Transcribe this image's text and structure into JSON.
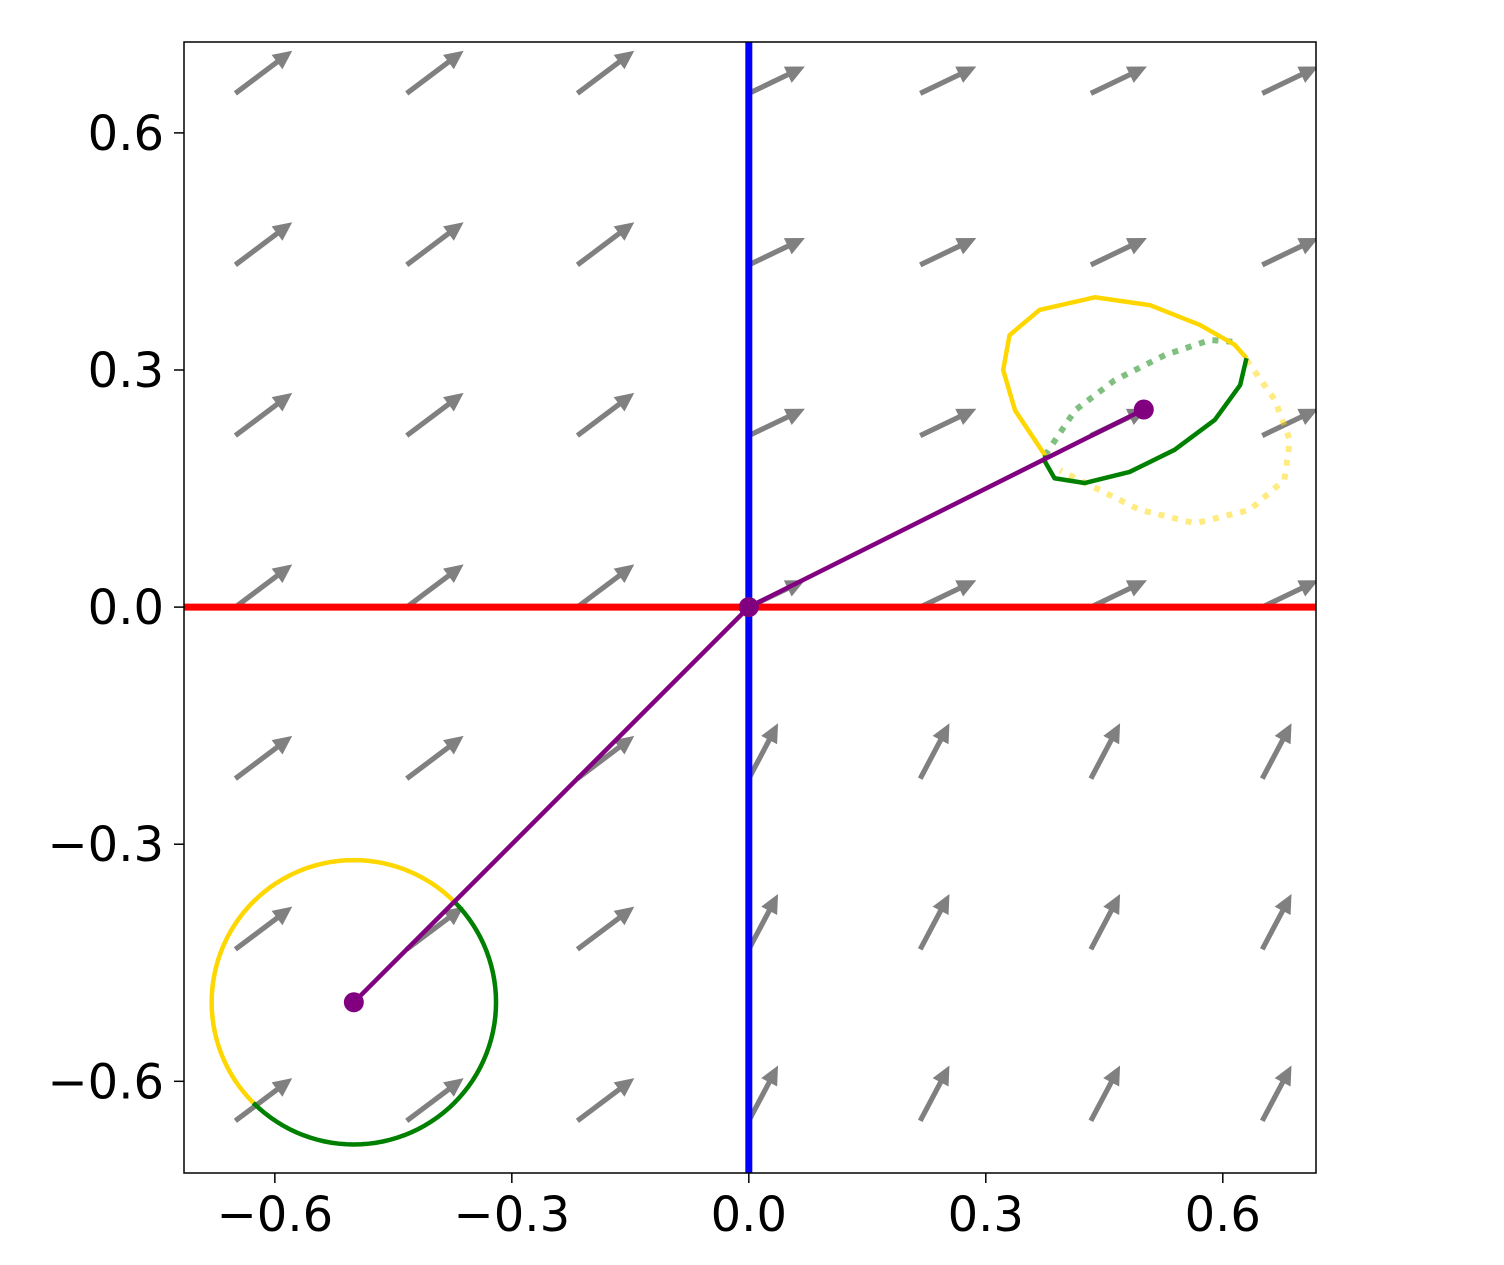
{
  "chart_data": {
    "type": "quiver",
    "xlim": [
      -0.715,
      0.718
    ],
    "ylim": [
      -0.716,
      0.715
    ],
    "xticks": [
      {
        "value": -0.6,
        "label": "−0.6"
      },
      {
        "value": -0.3,
        "label": "−0.3"
      },
      {
        "value": 0,
        "label": "0.0"
      },
      0.3,
      0.6
    ],
    "yticks": [
      {
        "value": -0.6,
        "label": "−0.6"
      },
      {
        "value": -0.3,
        "label": "−0.3"
      },
      {
        "value": 0,
        "label": "0.0"
      },
      0.3,
      0.6
    ],
    "quiver": {
      "color": "#808080",
      "x": [
        -0.65,
        -0.433,
        -0.217,
        0,
        0.217,
        0.433,
        0.65
      ],
      "y": [
        0.65,
        0.433,
        0.217,
        0,
        -0.217,
        -0.433,
        -0.65
      ],
      "u": [
        [
          0.072,
          0.072,
          0.072,
          0.071,
          0.071,
          0.071,
          0.071
        ],
        [
          0.072,
          0.072,
          0.072,
          0.071,
          0.071,
          0.071,
          0.071
        ],
        [
          0.072,
          0.072,
          0.072,
          0.071,
          0.071,
          0.071,
          0.071
        ],
        [
          0.072,
          0.072,
          0.072,
          0.071,
          0.071,
          0.071,
          0.071
        ],
        [
          0.072,
          0.072,
          0.072,
          0.037,
          0.037,
          0.037,
          0.037
        ],
        [
          0.072,
          0.072,
          0.072,
          0.037,
          0.037,
          0.037,
          0.037
        ],
        [
          0.072,
          0.072,
          0.072,
          0.037,
          0.037,
          0.037,
          0.037
        ]
      ],
      "v": [
        [
          0.054,
          0.054,
          0.054,
          0.034,
          0.034,
          0.034,
          0.034
        ],
        [
          0.054,
          0.054,
          0.054,
          0.034,
          0.034,
          0.034,
          0.034
        ],
        [
          0.054,
          0.054,
          0.054,
          0.034,
          0.034,
          0.034,
          0.034
        ],
        [
          0.054,
          0.054,
          0.054,
          0.034,
          0.034,
          0.034,
          0.034
        ],
        [
          0.054,
          0.054,
          0.054,
          0.07,
          0.07,
          0.07,
          0.07
        ],
        [
          0.054,
          0.054,
          0.054,
          0.07,
          0.07,
          0.07,
          0.07
        ],
        [
          0.054,
          0.054,
          0.054,
          0.07,
          0.07,
          0.07,
          0.07
        ]
      ]
    },
    "hlines": [
      {
        "y": 0,
        "color": "#ff0000"
      }
    ],
    "vlines": [
      {
        "x": 0,
        "color": "#0000ff"
      }
    ],
    "circle": {
      "center": [
        -0.5,
        -0.5
      ],
      "radius": 0.18,
      "arcs": [
        {
          "color": "#ffd700",
          "start": 45,
          "end": 225
        },
        {
          "color": "#008000",
          "start": 225,
          "end": 405
        }
      ]
    },
    "curves": [
      {
        "color": "#008000",
        "style": "dotted",
        "x": [
          0.375,
          0.413,
          0.463,
          0.527,
          0.584,
          0.622
        ],
        "y": [
          0.192,
          0.249,
          0.287,
          0.319,
          0.338,
          0.335
        ]
      },
      {
        "color": "#ffd700",
        "style": "dotted",
        "x": [
          0.63,
          0.666,
          0.685,
          0.678,
          0.634,
          0.565,
          0.495,
          0.432,
          0.394
        ],
        "y": [
          0.313,
          0.262,
          0.211,
          0.161,
          0.123,
          0.106,
          0.123,
          0.154,
          0.173
        ]
      },
      {
        "color": "#ffd700",
        "style": "solid",
        "x": [
          0.375,
          0.337,
          0.322,
          0.33,
          0.368,
          0.438,
          0.508,
          0.571,
          0.615,
          0.63
        ],
        "y": [
          0.192,
          0.249,
          0.3,
          0.344,
          0.376,
          0.392,
          0.382,
          0.357,
          0.332,
          0.315
        ]
      },
      {
        "color": "#008000",
        "style": "solid",
        "x": [
          0.63,
          0.622,
          0.59,
          0.539,
          0.482,
          0.425,
          0.387,
          0.375,
          0.375
        ],
        "y": [
          0.315,
          0.281,
          0.237,
          0.199,
          0.171,
          0.157,
          0.163,
          0.184,
          0.192
        ]
      }
    ],
    "path": {
      "color": "#800080",
      "x": [
        -0.5,
        0,
        0.5
      ],
      "y": [
        -0.5,
        0,
        0.25
      ]
    }
  }
}
